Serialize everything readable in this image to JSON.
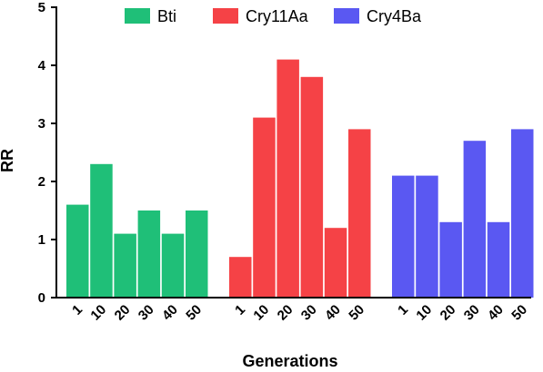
{
  "chart_data": {
    "type": "bar",
    "title": "",
    "xlabel": "Generations",
    "ylabel": "RR",
    "ylim": [
      0,
      5
    ],
    "yticks": [
      "0",
      "1",
      "2",
      "3",
      "4",
      "5"
    ],
    "grid": false,
    "legend_position": "top",
    "categories": [
      "1",
      "10",
      "20",
      "30",
      "40",
      "50"
    ],
    "series": [
      {
        "name": "Bti",
        "color": "#1fbf78",
        "values": [
          1.6,
          2.3,
          1.1,
          1.5,
          1.1,
          1.5
        ]
      },
      {
        "name": "Cry11Aa",
        "color": "#f54246",
        "values": [
          0.7,
          3.1,
          4.1,
          3.8,
          1.2,
          2.9
        ]
      },
      {
        "name": "Cry4Ba",
        "color": "#5a58f2",
        "values": [
          2.1,
          2.1,
          1.3,
          2.7,
          1.3,
          2.9
        ]
      }
    ]
  }
}
